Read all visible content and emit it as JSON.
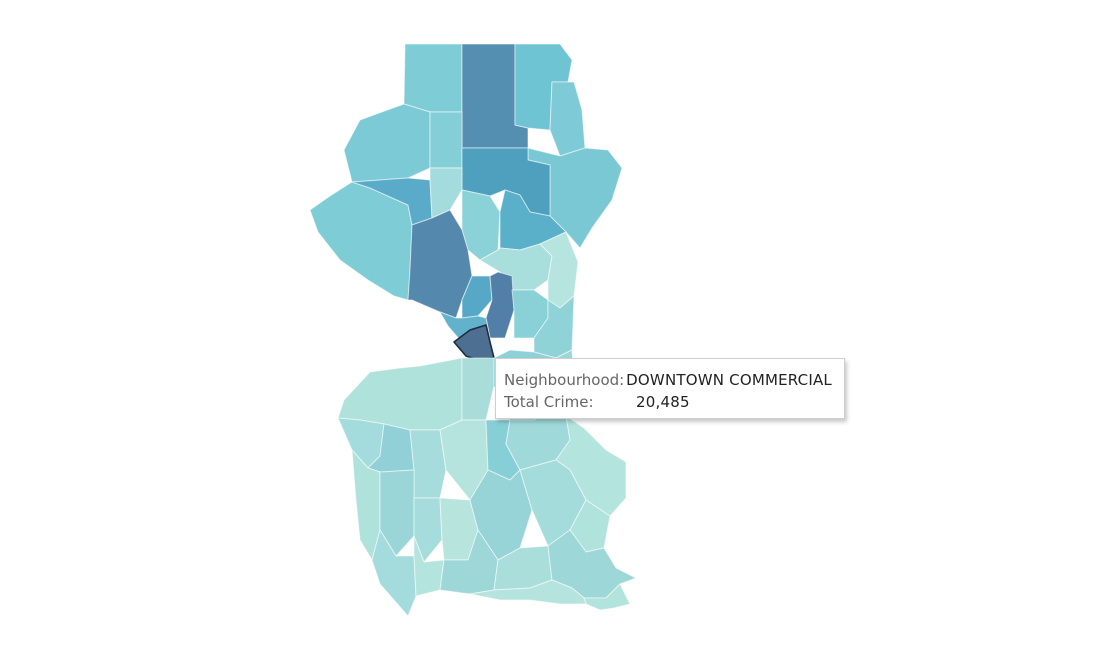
{
  "colors": {
    "background": "#ffffff",
    "lightest": "#b0e2dc",
    "light": "#a6dcdc",
    "mid_light": "#90d0d6",
    "mid": "#79c9d4",
    "mid_dark": "#5fb4cb",
    "dark": "#4a9fc0",
    "darker": "#4f8fb0",
    "darkest": "#4b7a9e",
    "selected": "#4c6f92"
  },
  "tooltip": {
    "neighbourhood_label": "Neighbourhood:",
    "neighbourhood_value": "DOWNTOWN COMMERCIAL",
    "crime_label": "Total Crime:",
    "crime_value": "20,485"
  },
  "selected_region": "DOWNTOWN COMMERCIAL"
}
